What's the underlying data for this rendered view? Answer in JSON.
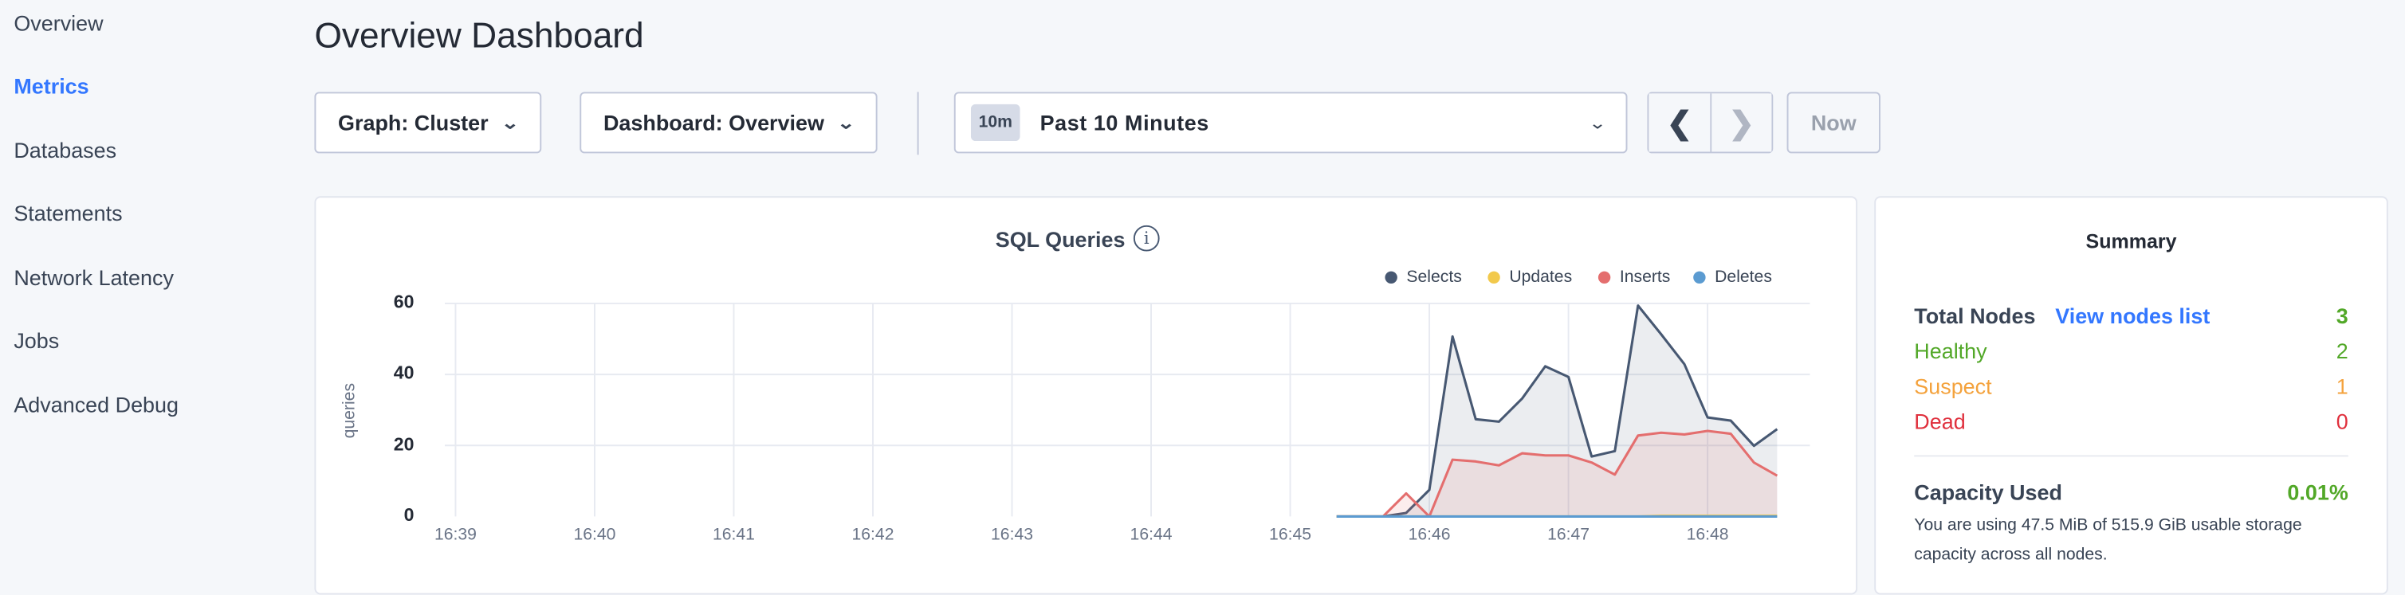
{
  "sidebar": {
    "items": [
      {
        "label": "Overview",
        "active": false
      },
      {
        "label": "Metrics",
        "active": true
      },
      {
        "label": "Databases",
        "active": false
      },
      {
        "label": "Statements",
        "active": false
      },
      {
        "label": "Network Latency",
        "active": false
      },
      {
        "label": "Jobs",
        "active": false
      },
      {
        "label": "Advanced Debug",
        "active": false
      }
    ]
  },
  "header": {
    "title": "Overview Dashboard"
  },
  "toolbar": {
    "graph_select": "Graph: Cluster",
    "dashboard_select": "Dashboard: Overview",
    "time_badge": "10m",
    "time_range": "Past 10 Minutes",
    "now_label": "Now"
  },
  "colors": {
    "accent": "#3377ff",
    "healthy": "#52a828",
    "suspect": "#f4a23c",
    "dead": "#e0303d"
  },
  "chart_data": {
    "type": "area",
    "title": "SQL Queries",
    "ylabel": "queries",
    "xlabel": "",
    "ylim": [
      0,
      60
    ],
    "yticks": [
      "0",
      "20",
      "40",
      "60"
    ],
    "xticks": [
      "16:39",
      "16:40",
      "16:41",
      "16:42",
      "16:43",
      "16:44",
      "16:45",
      "16:46",
      "16:47",
      "16:48"
    ],
    "grid": true,
    "legend_position": "top-right",
    "x": [
      "16:45:20",
      "16:45:30",
      "16:45:40",
      "16:45:50",
      "16:46:00",
      "16:46:10",
      "16:46:20",
      "16:46:30",
      "16:46:40",
      "16:46:50",
      "16:47:00",
      "16:47:10",
      "16:47:20",
      "16:47:30",
      "16:47:40",
      "16:47:50",
      "16:48:00",
      "16:48:10",
      "16:48:20",
      "16:48:30"
    ],
    "series": [
      {
        "name": "Selects",
        "color": "#475872",
        "values": [
          0,
          0,
          0,
          1,
          7.5,
          50.7,
          27.4,
          26.7,
          33.2,
          42.3,
          39.3,
          16.9,
          18.4,
          59.4,
          51.3,
          42.9,
          27.9,
          27,
          19.9,
          24.6
        ]
      },
      {
        "name": "Updates",
        "color": "#f2c94c",
        "values": [
          0,
          0,
          0,
          0,
          0,
          0,
          0,
          0,
          0,
          0,
          0,
          0,
          0,
          0,
          0.2,
          0.2,
          0.2,
          0.2,
          0.2,
          0.2
        ]
      },
      {
        "name": "Inserts",
        "color": "#e46e6e",
        "values": [
          0,
          0,
          0,
          6.5,
          0,
          16,
          15.5,
          14.4,
          17.8,
          17.2,
          17.2,
          15.2,
          11.8,
          22.8,
          23.6,
          23.1,
          24.1,
          23.3,
          15.2,
          11.5
        ]
      },
      {
        "name": "Deletes",
        "color": "#5b9bd1",
        "values": [
          0,
          0,
          0,
          0,
          0,
          0,
          0,
          0,
          0,
          0,
          0,
          0,
          0,
          0,
          0,
          0,
          0,
          0,
          0,
          0
        ]
      }
    ]
  },
  "summary": {
    "title": "Summary",
    "total_nodes_label": "Total Nodes",
    "view_nodes_link": "View nodes list",
    "total_nodes": "3",
    "healthy_label": "Healthy",
    "healthy": "2",
    "suspect_label": "Suspect",
    "suspect": "1",
    "dead_label": "Dead",
    "dead": "0",
    "capacity_label": "Capacity Used",
    "capacity_value": "0.01%",
    "capacity_text": "You are using 47.5 MiB of 515.9 GiB usable storage capacity across all nodes."
  }
}
